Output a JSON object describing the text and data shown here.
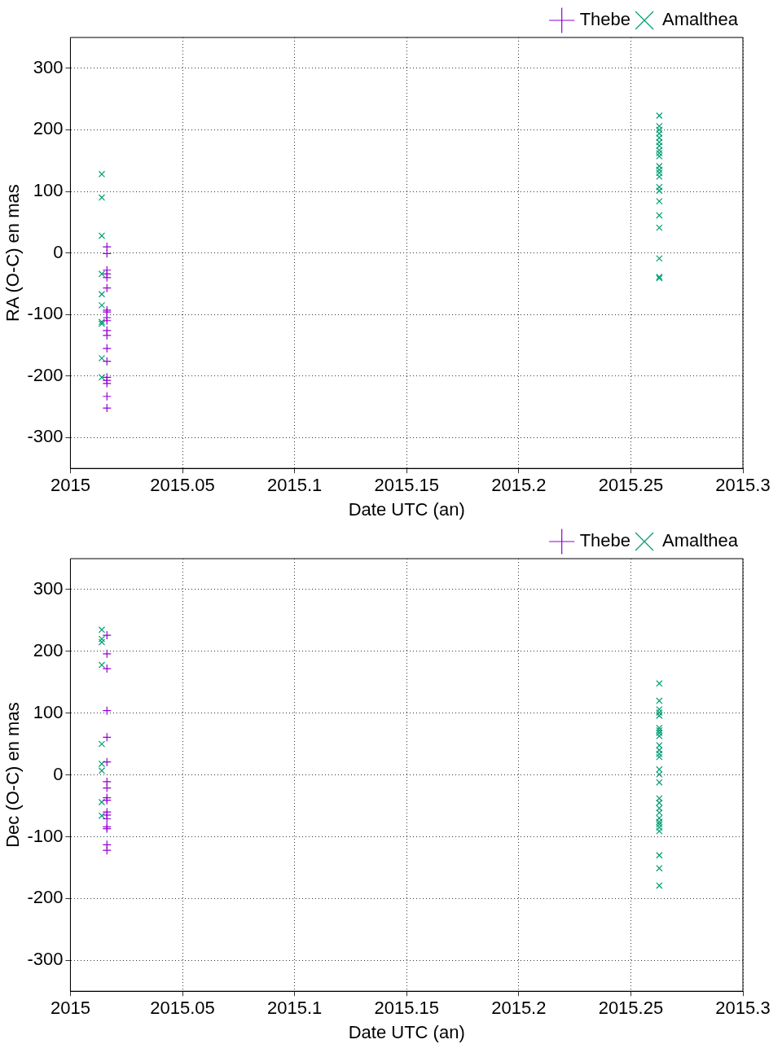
{
  "chart_data": [
    {
      "type": "scatter",
      "xlabel": "Date UTC (an)",
      "ylabel": "RA (O-C) en mas",
      "xlim": [
        2015,
        2015.3
      ],
      "xticks": [
        2015,
        2015.05,
        2015.1,
        2015.15,
        2015.2,
        2015.25,
        2015.3
      ],
      "ylim": [
        -350,
        350
      ],
      "yticks": [
        -300,
        -200,
        -100,
        0,
        100,
        200,
        300
      ],
      "grid": true,
      "legend": "top right",
      "series": [
        {
          "name": "Thebe",
          "color": "#9400d3",
          "marker": "plus",
          "x": [
            2015.0163,
            2015.0163,
            2015.0163,
            2015.0163,
            2015.0163,
            2015.0163,
            2015.0163,
            2015.0163,
            2015.0163,
            2015.0163,
            2015.0163,
            2015.0163,
            2015.0163,
            2015.0163,
            2015.0163,
            2015.0163,
            2015.0163,
            2015.0163,
            2015.0163
          ],
          "values": [
            10,
            -1,
            -28,
            -34,
            -40,
            -57,
            -93,
            -96,
            -105,
            -110,
            -126,
            -134,
            -155,
            -176,
            -202,
            -207,
            -212,
            -233,
            -252
          ]
        },
        {
          "name": "Amalthea",
          "color": "#009e73",
          "marker": "cross",
          "x": [
            2015.014,
            2015.014,
            2015.014,
            2015.014,
            2015.014,
            2015.014,
            2015.014,
            2015.014,
            2015.014,
            2015.014,
            2015.2627,
            2015.2627,
            2015.2627,
            2015.2627,
            2015.2627,
            2015.2627,
            2015.2627,
            2015.2627,
            2015.2627,
            2015.2627,
            2015.2627,
            2015.2627,
            2015.2627,
            2015.2627,
            2015.2627,
            2015.2627,
            2015.2627,
            2015.2627,
            2015.2627,
            2015.2627,
            2015.2627,
            2015.2627
          ],
          "values": [
            128,
            90,
            28,
            -34,
            -67,
            -85,
            -112,
            -115,
            -171,
            -202,
            223,
            206,
            200,
            194,
            187,
            180,
            174,
            167,
            162,
            157,
            141,
            135,
            130,
            124,
            107,
            101,
            84,
            61,
            41,
            -9,
            -39,
            -41
          ]
        }
      ]
    },
    {
      "type": "scatter",
      "xlabel": "Date UTC (an)",
      "ylabel": "Dec (O-C) en mas",
      "xlim": [
        2015,
        2015.3
      ],
      "xticks": [
        2015,
        2015.05,
        2015.1,
        2015.15,
        2015.2,
        2015.25,
        2015.3
      ],
      "ylim": [
        -350,
        350
      ],
      "yticks": [
        -300,
        -200,
        -100,
        0,
        100,
        200,
        300
      ],
      "grid": true,
      "legend": "top right",
      "series": [
        {
          "name": "Thebe",
          "color": "#9400d3",
          "marker": "plus",
          "x": [
            2015.0163,
            2015.0163,
            2015.0163,
            2015.0163,
            2015.0163,
            2015.0163,
            2015.0163,
            2015.0163,
            2015.0163,
            2015.0163,
            2015.0163,
            2015.0163,
            2015.0163,
            2015.0163,
            2015.0163,
            2015.0163,
            2015.0163
          ],
          "values": [
            226,
            196,
            172,
            104,
            61,
            21,
            -11,
            -21,
            -37,
            -41,
            -60,
            -65,
            -71,
            -84,
            -87,
            -113,
            -122
          ]
        },
        {
          "name": "Amalthea",
          "color": "#009e73",
          "marker": "cross",
          "x": [
            2015.014,
            2015.014,
            2015.014,
            2015.014,
            2015.014,
            2015.014,
            2015.014,
            2015.014,
            2015.014,
            2015.2627,
            2015.2627,
            2015.2627,
            2015.2627,
            2015.2627,
            2015.2627,
            2015.2627,
            2015.2627,
            2015.2627,
            2015.2627,
            2015.2627,
            2015.2627,
            2015.2627,
            2015.2627,
            2015.2627,
            2015.2627,
            2015.2627,
            2015.2627,
            2015.2627,
            2015.2627,
            2015.2627,
            2015.2627,
            2015.2627,
            2015.2627,
            2015.2627,
            2015.2627,
            2015.2627,
            2015.2627
          ],
          "values": [
            235,
            220,
            215,
            178,
            50,
            18,
            7,
            -44,
            -66,
            148,
            120,
            106,
            101,
            96,
            76,
            72,
            68,
            63,
            48,
            40,
            34,
            29,
            9,
            1,
            -12,
            -38,
            -45,
            -54,
            -61,
            -70,
            -76,
            -80,
            -85,
            -91,
            -130,
            -151,
            -179
          ]
        }
      ]
    }
  ]
}
